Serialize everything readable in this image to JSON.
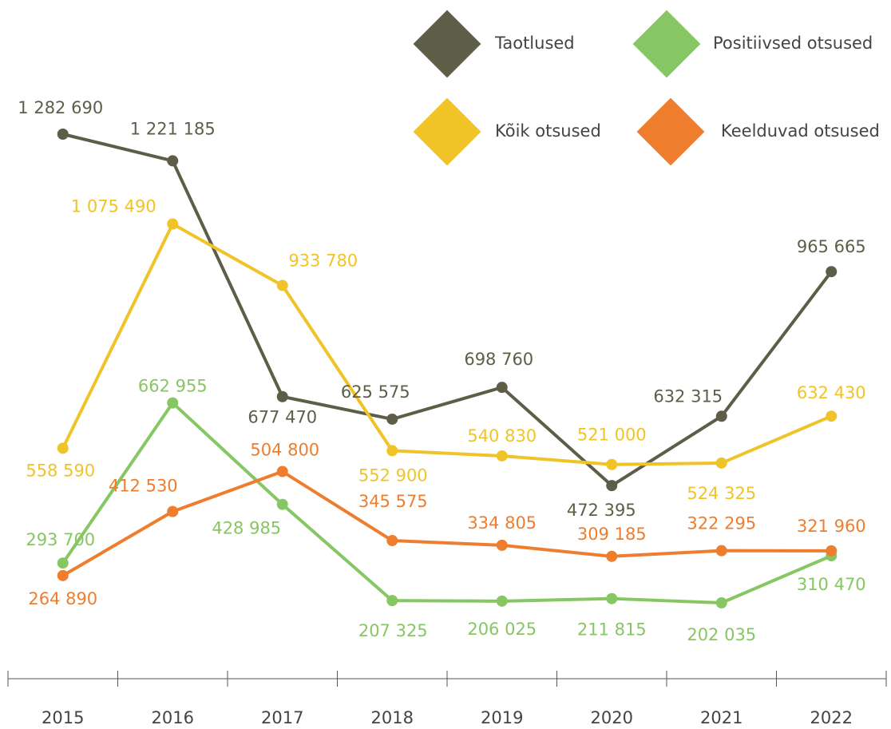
{
  "chart_data": {
    "type": "line",
    "categories": [
      "2015",
      "2016",
      "2017",
      "2018",
      "2019",
      "2020",
      "2021",
      "2022"
    ],
    "series": [
      {
        "name": "Taotlused",
        "color": "#5e5e48",
        "values": [
          1282690,
          1221185,
          677470,
          625575,
          698760,
          472395,
          632315,
          965665
        ],
        "value_labels": [
          "1 282 690",
          "1 221 185",
          "677 470",
          "625 575",
          "698 760",
          "472 395",
          "632 315",
          "965 665"
        ]
      },
      {
        "name": "Kõik otsused",
        "color": "#f0c428",
        "values": [
          558590,
          1075490,
          933780,
          552900,
          540830,
          521000,
          524325,
          632430
        ],
        "value_labels": [
          "558 590",
          "1 075 490",
          "933 780",
          "552 900",
          "540 830",
          "521 000",
          "524 325",
          "632 430"
        ]
      },
      {
        "name": "Positiivsed otsused",
        "color": "#86c764",
        "values": [
          293700,
          662955,
          428985,
          207325,
          206025,
          211815,
          202035,
          310470
        ],
        "value_labels": [
          "293 700",
          "662 955",
          "428 985",
          "207 325",
          "206 025",
          "211 815",
          "202 035",
          "310 470"
        ]
      },
      {
        "name": "Keelduvad otsused",
        "color": "#ef7d2e",
        "values": [
          264890,
          412530,
          504800,
          345575,
          334805,
          309185,
          322295,
          321960
        ],
        "value_labels": [
          "264 890",
          "412 530",
          "504 800",
          "345 575",
          "334 805",
          "309 185",
          "322 295",
          "321 960"
        ]
      }
    ]
  }
}
